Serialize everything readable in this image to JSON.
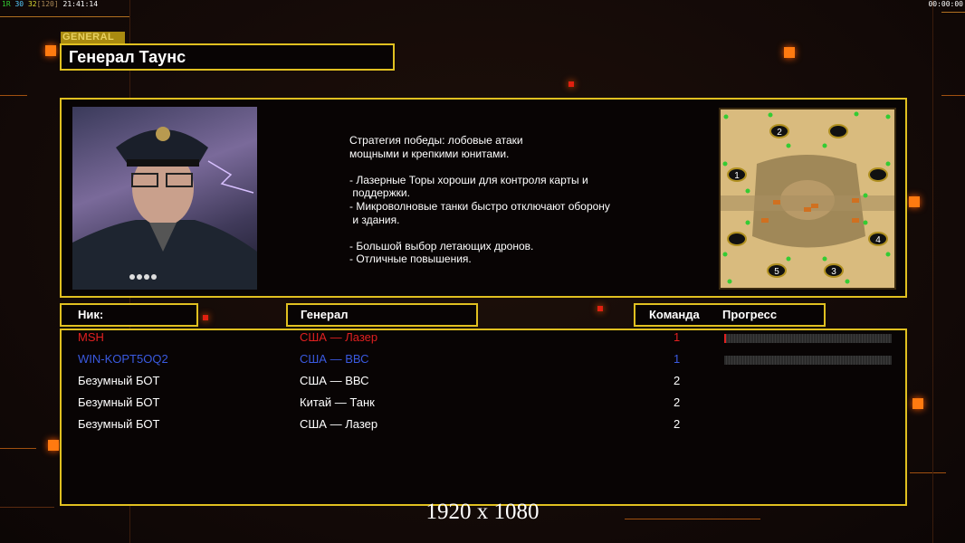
{
  "hud": {
    "left": {
      "a": "1R",
      "b": "30",
      "c": "32",
      "d": "[120]",
      "time": "21:41:14"
    },
    "right_time": "00:00:00"
  },
  "general_label": "GENERAL",
  "general_name": "Генерал Таунс",
  "description": "Стратегия победы: лобовые атаки\nмощными и крепкими юнитами.\n\n- Лазерные Торы хороши для контроля карты и\n поддержки.\n- Микроволновые танки быстро отключают оборону\n и здания.\n\n- Большой выбор летающих дронов.\n- Отличные повышения.",
  "map": {
    "start_positions": [
      "1",
      "2",
      "3",
      "4",
      "5"
    ]
  },
  "headers": {
    "nick": "Ник:",
    "general": "Генерал",
    "team": "Команда",
    "progress": "Прогресс"
  },
  "players": [
    {
      "nick": "MSH",
      "general": "США — Лазер",
      "team": "1",
      "color": "#e02020",
      "progress": 0.01
    },
    {
      "nick": "WIN-KOPT5OQ2",
      "general": "США — ВВС",
      "team": "1",
      "color": "#3a5ae0",
      "progress": 0
    },
    {
      "nick": "Безумный БОТ",
      "general": "США — ВВС",
      "team": "2",
      "color": "#ffffff"
    },
    {
      "nick": "Безумный БОТ",
      "general": "Китай — Танк",
      "team": "2",
      "color": "#ffffff"
    },
    {
      "nick": "Безумный БОТ",
      "general": "США — Лазер",
      "team": "2",
      "color": "#ffffff"
    }
  ],
  "resolution": "1920 x 1080",
  "colors": {
    "frame": "#e0c020",
    "accent": "#ff7a10"
  }
}
